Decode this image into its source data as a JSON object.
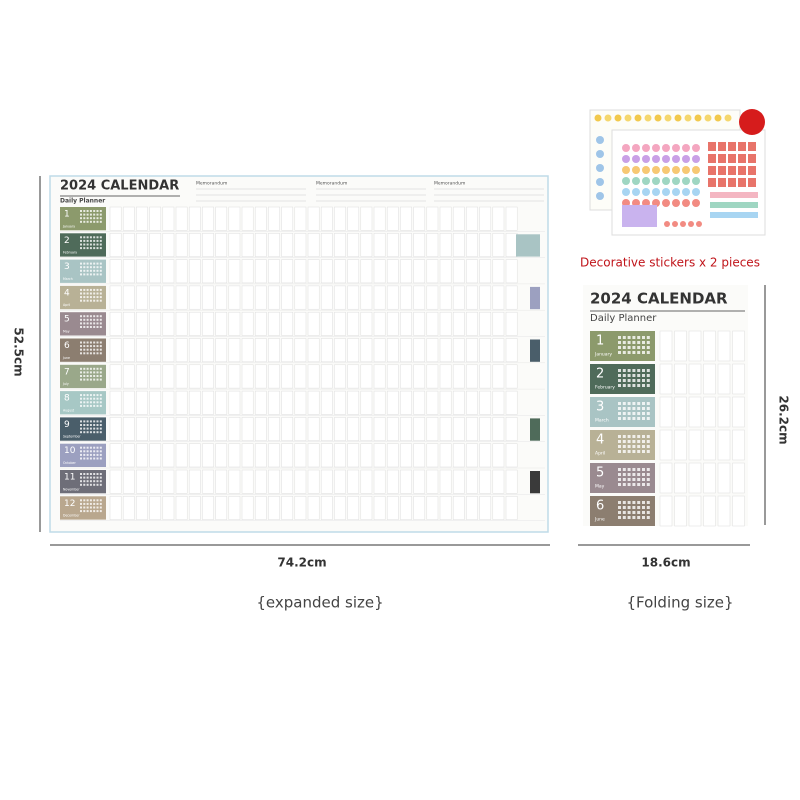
{
  "stickers": {
    "caption": "Decorative stickers x 2 pieces"
  },
  "expanded": {
    "title": "2024 CALENDAR",
    "subtitle": "Daily Planner",
    "memo": [
      "Memorandum",
      "Memorandum",
      "Memorandum"
    ],
    "width": "74.2cm",
    "height": "52.5cm",
    "caption": "{expanded size}"
  },
  "folded": {
    "title": "2024 CALENDAR",
    "subtitle": "Daily Planner",
    "width": "18.6cm",
    "height": "26.2cm",
    "caption": "{Folding size}"
  },
  "months": [
    {
      "number": "1",
      "name": "January"
    },
    {
      "number": "2",
      "name": "February"
    },
    {
      "number": "3",
      "name": "March"
    },
    {
      "number": "4",
      "name": "April"
    },
    {
      "number": "5",
      "name": "May"
    },
    {
      "number": "6",
      "name": "June"
    },
    {
      "number": "7",
      "name": "July"
    },
    {
      "number": "8",
      "name": "August"
    },
    {
      "number": "9",
      "name": "September"
    },
    {
      "number": "10",
      "name": "October"
    },
    {
      "number": "11",
      "name": "November"
    },
    {
      "number": "12",
      "name": "December"
    }
  ]
}
